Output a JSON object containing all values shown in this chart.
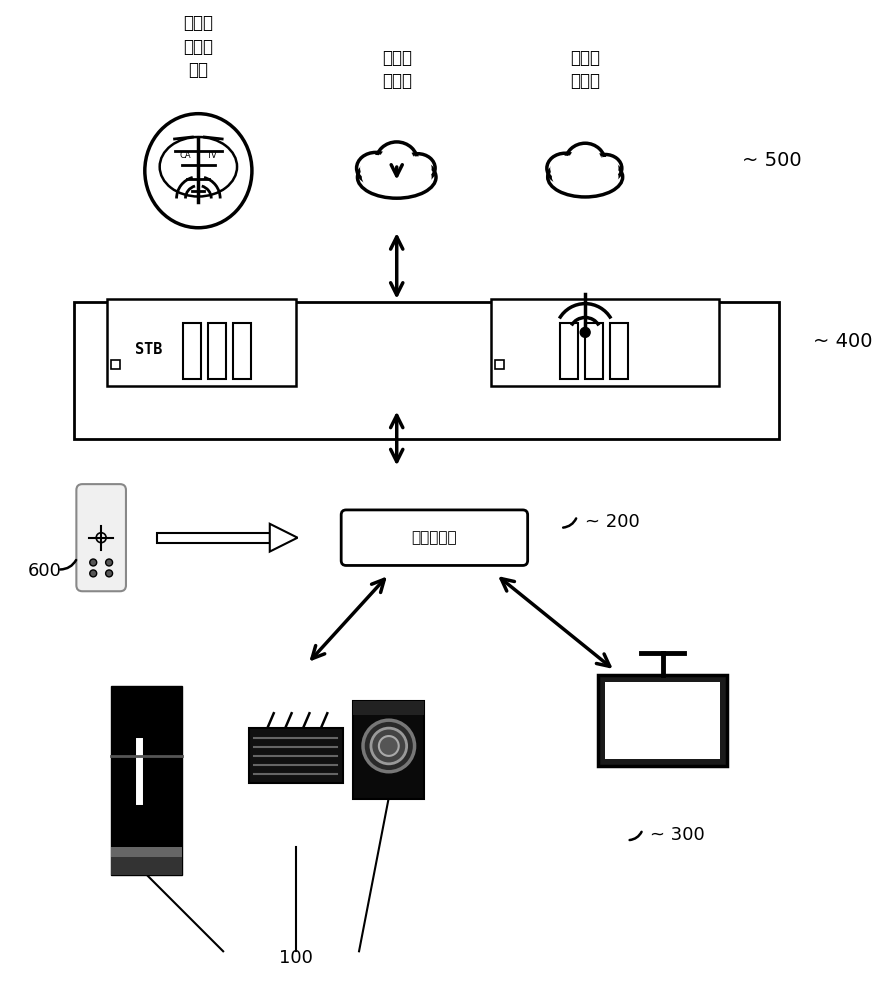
{
  "bg_color": "#ffffff",
  "label_500": "500",
  "label_400": "400",
  "label_200": "200",
  "label_300": "300",
  "label_100": "100",
  "label_600": "600",
  "text_tv_server": "电视运\n营商服\n务器",
  "text_internet_server": "互联网\n服务器",
  "text_iot_server": "物联网\n服务器",
  "text_stb": "STB",
  "text_controller": "集中控制器",
  "fig_width": 8.85,
  "fig_height": 10.0
}
